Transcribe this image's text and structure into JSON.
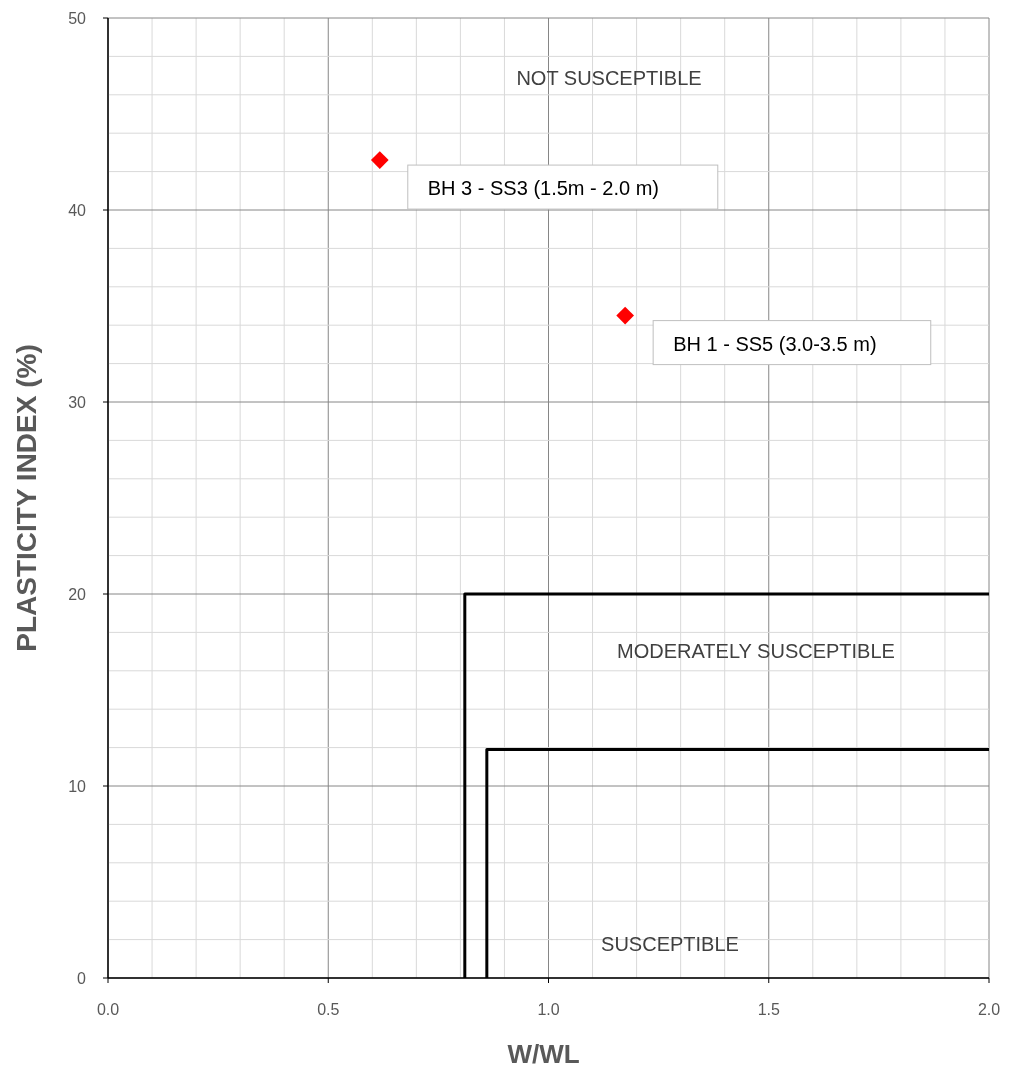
{
  "chart_data": {
    "type": "scatter",
    "xlabel": "W/WL",
    "ylabel": "PLASTICITY INDEX (%)",
    "xlim": [
      0,
      2
    ],
    "ylim": [
      0,
      50
    ],
    "xticks": [
      {
        "value": 0,
        "label": "0.0"
      },
      {
        "value": 0.1,
        "label": null
      },
      {
        "value": 0.2,
        "label": null
      },
      {
        "value": 0.3,
        "label": null
      },
      {
        "value": 0.4,
        "label": null
      },
      {
        "value": 0.5,
        "label": "0.5"
      },
      {
        "value": 0.6,
        "label": null
      },
      {
        "value": 0.7,
        "label": null
      },
      {
        "value": 0.8,
        "label": null
      },
      {
        "value": 0.9,
        "label": null
      },
      {
        "value": 1,
        "label": "1.0"
      },
      {
        "value": 1.1,
        "label": null
      },
      {
        "value": 1.2,
        "label": null
      },
      {
        "value": 1.3,
        "label": null
      },
      {
        "value": 1.4,
        "label": null
      },
      {
        "value": 1.5,
        "label": "1.5"
      },
      {
        "value": 1.6,
        "label": null
      },
      {
        "value": 1.7,
        "label": null
      },
      {
        "value": 1.8,
        "label": null
      },
      {
        "value": 1.9,
        "label": null
      },
      {
        "value": 2,
        "label": "2.0"
      }
    ],
    "yticks": [
      0,
      {
        "value": 2,
        "label": null
      },
      {
        "value": 4,
        "label": null
      },
      {
        "value": 6,
        "label": null
      },
      {
        "value": 8,
        "label": null
      },
      10,
      {
        "value": 12,
        "label": null
      },
      {
        "value": 14,
        "label": null
      },
      {
        "value": 16,
        "label": null
      },
      {
        "value": 18,
        "label": null
      },
      20,
      {
        "value": 22,
        "label": null
      },
      {
        "value": 24,
        "label": null
      },
      {
        "value": 26,
        "label": null
      },
      {
        "value": 28,
        "label": null
      },
      30,
      {
        "value": 32,
        "label": null
      },
      {
        "value": 34,
        "label": null
      },
      {
        "value": 36,
        "label": null
      },
      {
        "value": 38,
        "label": null
      },
      40,
      {
        "value": 42,
        "label": null
      },
      {
        "value": 44,
        "label": null
      },
      {
        "value": 46,
        "label": null
      },
      {
        "value": 48,
        "label": null
      },
      50
    ],
    "grid": true,
    "series": [
      {
        "color": "#ff0000",
        "marker": "diamond",
        "x": [
          0.617,
          1.174
        ],
        "values": [
          42.6,
          34.5
        ]
      },
      {
        "type": "line",
        "color": "#000000",
        "x": [
          0.81,
          0.81,
          2.0
        ],
        "values": [
          0,
          20,
          20
        ]
      },
      {
        "type": "line",
        "color": "#000000",
        "x": [
          0.86,
          0.86,
          2.0
        ],
        "values": [
          0,
          11.9,
          11.9
        ]
      }
    ],
    "annotations": [
      "NOT SUSCEPTIBLE",
      "MODERATELY SUSCEPTIBLE",
      "SUSCEPTIBLE",
      {
        "text": "BH 3 - SS3 (1.5m - 2.0 m)",
        "x": 0.617,
        "y": 42.6
      },
      {
        "text": "BH 1 - SS5 (3.0-3.5 m)",
        "x": 1.174,
        "y": 34.5
      }
    ]
  }
}
